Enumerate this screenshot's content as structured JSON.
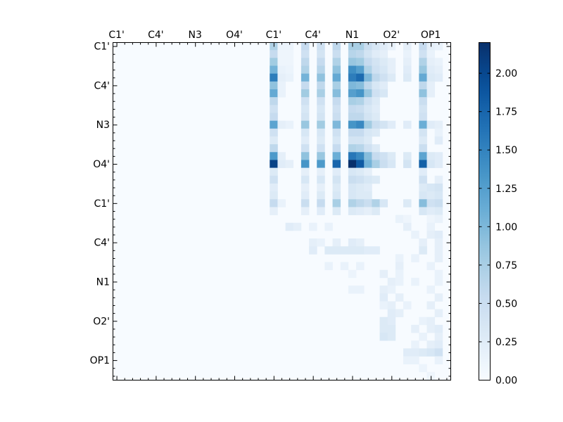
{
  "chart_data": {
    "type": "heatmap",
    "colormap": "Blues",
    "colors": {
      "low": "#f7fbff",
      "high": "#08306b"
    },
    "atom_labels": [
      "C1'",
      "C4'",
      "N3",
      "O4'",
      "C1'",
      "C4'",
      "N1",
      "O2'",
      "OP1"
    ],
    "top_tick_labels": [
      "C1'",
      "C4'",
      "N3",
      "O4'",
      "C1'",
      "C4'",
      "N1",
      "O2'",
      "OP1"
    ],
    "left_tick_labels": [
      "C1'",
      "C4'",
      "N3",
      "O4'",
      "C1'",
      "C4'",
      "N1",
      "O2'",
      "OP1"
    ],
    "grid_size": 43,
    "label_every": 5,
    "value_range": [
      0,
      2.2
    ],
    "colorbar_ticks": [
      "0.00",
      "0.25",
      "0.50",
      "0.75",
      "1.00",
      "1.25",
      "1.50",
      "1.75",
      "2.00"
    ],
    "colorbar_tick_values": [
      0,
      0.25,
      0.5,
      0.75,
      1.0,
      1.25,
      1.5,
      1.75,
      2.0
    ],
    "cells": [
      [
        0,
        20,
        0.7
      ],
      [
        0,
        21,
        0.12
      ],
      [
        0,
        22,
        0.12
      ],
      [
        0,
        24,
        0.55
      ],
      [
        0,
        26,
        0.45
      ],
      [
        0,
        28,
        0.6
      ],
      [
        0,
        30,
        0.75
      ],
      [
        0,
        31,
        0.75
      ],
      [
        0,
        32,
        0.5
      ],
      [
        0,
        33,
        0.35
      ],
      [
        0,
        34,
        0.25
      ],
      [
        0,
        35,
        0.15
      ],
      [
        0,
        37,
        0.2
      ],
      [
        0,
        39,
        0.55
      ],
      [
        0,
        40,
        0.2
      ],
      [
        0,
        41,
        0.15
      ],
      [
        1,
        20,
        0.55
      ],
      [
        1,
        21,
        0.1
      ],
      [
        1,
        22,
        0.1
      ],
      [
        1,
        24,
        0.45
      ],
      [
        1,
        26,
        0.4
      ],
      [
        1,
        28,
        0.5
      ],
      [
        1,
        30,
        0.65
      ],
      [
        1,
        31,
        0.6
      ],
      [
        1,
        32,
        0.4
      ],
      [
        1,
        33,
        0.25
      ],
      [
        1,
        34,
        0.2
      ],
      [
        1,
        37,
        0.15
      ],
      [
        1,
        39,
        0.45
      ],
      [
        1,
        40,
        0.15
      ],
      [
        2,
        20,
        0.8
      ],
      [
        2,
        21,
        0.1
      ],
      [
        2,
        22,
        0.1
      ],
      [
        2,
        24,
        0.6
      ],
      [
        2,
        26,
        0.55
      ],
      [
        2,
        28,
        0.7
      ],
      [
        2,
        30,
        0.85
      ],
      [
        2,
        31,
        0.8
      ],
      [
        2,
        32,
        0.55
      ],
      [
        2,
        33,
        0.4
      ],
      [
        2,
        34,
        0.3
      ],
      [
        2,
        35,
        0.2
      ],
      [
        2,
        37,
        0.2
      ],
      [
        2,
        39,
        0.7
      ],
      [
        2,
        40,
        0.2
      ],
      [
        2,
        41,
        0.15
      ],
      [
        3,
        20,
        1.05
      ],
      [
        3,
        21,
        0.15
      ],
      [
        3,
        22,
        0.12
      ],
      [
        3,
        24,
        0.7
      ],
      [
        3,
        26,
        0.65
      ],
      [
        3,
        28,
        0.9
      ],
      [
        3,
        30,
        1.4
      ],
      [
        3,
        31,
        1.25
      ],
      [
        3,
        32,
        0.7
      ],
      [
        3,
        33,
        0.45
      ],
      [
        3,
        34,
        0.35
      ],
      [
        3,
        35,
        0.2
      ],
      [
        3,
        37,
        0.25
      ],
      [
        3,
        39,
        0.85
      ],
      [
        3,
        40,
        0.25
      ],
      [
        3,
        41,
        0.2
      ],
      [
        4,
        20,
        1.55
      ],
      [
        4,
        21,
        0.2
      ],
      [
        4,
        22,
        0.15
      ],
      [
        4,
        24,
        1.05
      ],
      [
        4,
        26,
        0.9
      ],
      [
        4,
        28,
        1.15
      ],
      [
        4,
        30,
        1.55
      ],
      [
        4,
        31,
        1.7
      ],
      [
        4,
        32,
        1.0
      ],
      [
        4,
        33,
        0.6
      ],
      [
        4,
        34,
        0.45
      ],
      [
        4,
        35,
        0.3
      ],
      [
        4,
        37,
        0.3
      ],
      [
        4,
        39,
        1.15
      ],
      [
        4,
        40,
        0.3
      ],
      [
        4,
        41,
        0.25
      ],
      [
        5,
        20,
        0.9
      ],
      [
        5,
        21,
        0.15
      ],
      [
        5,
        24,
        0.55
      ],
      [
        5,
        26,
        0.6
      ],
      [
        5,
        28,
        0.75
      ],
      [
        5,
        30,
        1.0
      ],
      [
        5,
        31,
        0.95
      ],
      [
        5,
        32,
        0.6
      ],
      [
        5,
        33,
        0.35
      ],
      [
        5,
        34,
        0.25
      ],
      [
        5,
        39,
        0.6
      ],
      [
        5,
        40,
        0.2
      ],
      [
        6,
        20,
        1.15
      ],
      [
        6,
        21,
        0.15
      ],
      [
        6,
        24,
        0.8
      ],
      [
        6,
        26,
        0.75
      ],
      [
        6,
        28,
        0.95
      ],
      [
        6,
        30,
        1.25
      ],
      [
        6,
        31,
        1.35
      ],
      [
        6,
        32,
        0.85
      ],
      [
        6,
        33,
        0.45
      ],
      [
        6,
        34,
        0.35
      ],
      [
        6,
        39,
        0.9
      ],
      [
        6,
        40,
        0.2
      ],
      [
        7,
        20,
        0.6
      ],
      [
        7,
        24,
        0.45
      ],
      [
        7,
        26,
        0.45
      ],
      [
        7,
        28,
        0.55
      ],
      [
        7,
        30,
        0.75
      ],
      [
        7,
        31,
        0.7
      ],
      [
        7,
        32,
        0.45
      ],
      [
        7,
        33,
        0.3
      ],
      [
        7,
        39,
        0.5
      ],
      [
        8,
        20,
        0.45
      ],
      [
        8,
        24,
        0.35
      ],
      [
        8,
        26,
        0.35
      ],
      [
        8,
        28,
        0.45
      ],
      [
        8,
        30,
        0.55
      ],
      [
        8,
        31,
        0.5
      ],
      [
        8,
        32,
        0.35
      ],
      [
        8,
        33,
        0.25
      ],
      [
        8,
        39,
        0.4
      ],
      [
        9,
        20,
        0.55
      ],
      [
        9,
        24,
        0.4
      ],
      [
        9,
        26,
        0.4
      ],
      [
        9,
        28,
        0.5
      ],
      [
        9,
        30,
        0.6
      ],
      [
        9,
        31,
        0.6
      ],
      [
        9,
        32,
        0.4
      ],
      [
        9,
        33,
        0.3
      ],
      [
        9,
        39,
        0.45
      ],
      [
        10,
        20,
        1.2
      ],
      [
        10,
        21,
        0.2
      ],
      [
        10,
        22,
        0.15
      ],
      [
        10,
        24,
        0.85
      ],
      [
        10,
        26,
        0.8
      ],
      [
        10,
        28,
        1.0
      ],
      [
        10,
        30,
        1.35
      ],
      [
        10,
        31,
        1.45
      ],
      [
        10,
        32,
        0.8
      ],
      [
        10,
        33,
        0.5
      ],
      [
        10,
        34,
        0.4
      ],
      [
        10,
        35,
        0.25
      ],
      [
        10,
        37,
        0.25
      ],
      [
        10,
        39,
        1.1
      ],
      [
        10,
        40,
        0.25
      ],
      [
        10,
        41,
        0.2
      ],
      [
        11,
        20,
        0.45
      ],
      [
        11,
        24,
        0.35
      ],
      [
        11,
        26,
        0.35
      ],
      [
        11,
        28,
        0.45
      ],
      [
        11,
        30,
        0.55
      ],
      [
        11,
        31,
        0.55
      ],
      [
        11,
        32,
        0.35
      ],
      [
        11,
        33,
        0.3
      ],
      [
        11,
        39,
        0.4
      ],
      [
        11,
        41,
        0.15
      ],
      [
        12,
        20,
        0.3
      ],
      [
        12,
        24,
        0.25
      ],
      [
        12,
        26,
        0.3
      ],
      [
        12,
        28,
        0.35
      ],
      [
        12,
        30,
        0.4
      ],
      [
        12,
        31,
        0.4
      ],
      [
        12,
        32,
        0.3
      ],
      [
        12,
        39,
        0.3
      ],
      [
        12,
        41,
        0.25
      ],
      [
        13,
        20,
        0.6
      ],
      [
        13,
        24,
        0.45
      ],
      [
        13,
        26,
        0.45
      ],
      [
        13,
        28,
        0.55
      ],
      [
        13,
        30,
        0.7
      ],
      [
        13,
        31,
        0.65
      ],
      [
        13,
        32,
        0.45
      ],
      [
        13,
        33,
        0.3
      ],
      [
        13,
        39,
        0.5
      ],
      [
        14,
        20,
        1.3
      ],
      [
        14,
        21,
        0.2
      ],
      [
        14,
        24,
        0.9
      ],
      [
        14,
        26,
        0.85
      ],
      [
        14,
        28,
        1.1
      ],
      [
        14,
        30,
        1.6
      ],
      [
        14,
        31,
        1.45
      ],
      [
        14,
        32,
        0.95
      ],
      [
        14,
        33,
        0.55
      ],
      [
        14,
        34,
        0.45
      ],
      [
        14,
        35,
        0.3
      ],
      [
        14,
        37,
        0.3
      ],
      [
        14,
        39,
        1.2
      ],
      [
        14,
        40,
        0.3
      ],
      [
        14,
        41,
        0.25
      ],
      [
        15,
        20,
        2.05
      ],
      [
        15,
        21,
        0.25
      ],
      [
        15,
        22,
        0.2
      ],
      [
        15,
        24,
        1.35
      ],
      [
        15,
        26,
        1.3
      ],
      [
        15,
        28,
        1.75
      ],
      [
        15,
        30,
        2.2
      ],
      [
        15,
        31,
        1.85
      ],
      [
        15,
        32,
        1.05
      ],
      [
        15,
        33,
        0.75
      ],
      [
        15,
        34,
        0.5
      ],
      [
        15,
        35,
        0.35
      ],
      [
        15,
        37,
        0.4
      ],
      [
        15,
        39,
        1.8
      ],
      [
        15,
        40,
        0.35
      ],
      [
        15,
        41,
        0.25
      ],
      [
        16,
        20,
        0.3
      ],
      [
        16,
        24,
        0.2
      ],
      [
        16,
        26,
        0.2
      ],
      [
        16,
        28,
        0.25
      ],
      [
        16,
        30,
        0.35
      ],
      [
        16,
        31,
        0.3
      ],
      [
        16,
        32,
        0.2
      ],
      [
        16,
        39,
        0.25
      ],
      [
        17,
        20,
        0.45
      ],
      [
        17,
        24,
        0.35
      ],
      [
        17,
        26,
        0.35
      ],
      [
        17,
        28,
        0.4
      ],
      [
        17,
        30,
        0.5
      ],
      [
        17,
        31,
        0.45
      ],
      [
        17,
        32,
        0.35
      ],
      [
        17,
        33,
        0.3
      ],
      [
        17,
        39,
        0.45
      ],
      [
        17,
        41,
        0.2
      ],
      [
        18,
        20,
        0.25
      ],
      [
        18,
        24,
        0.2
      ],
      [
        18,
        26,
        0.2
      ],
      [
        18,
        28,
        0.3
      ],
      [
        18,
        30,
        0.35
      ],
      [
        18,
        31,
        0.3
      ],
      [
        18,
        32,
        0.25
      ],
      [
        18,
        39,
        0.3
      ],
      [
        18,
        40,
        0.35
      ],
      [
        18,
        41,
        0.4
      ],
      [
        19,
        20,
        0.3
      ],
      [
        19,
        24,
        0.25
      ],
      [
        19,
        26,
        0.3
      ],
      [
        19,
        28,
        0.35
      ],
      [
        19,
        30,
        0.35
      ],
      [
        19,
        31,
        0.3
      ],
      [
        19,
        32,
        0.3
      ],
      [
        19,
        39,
        0.35
      ],
      [
        19,
        40,
        0.3
      ],
      [
        19,
        41,
        0.35
      ],
      [
        20,
        20,
        0.55
      ],
      [
        20,
        21,
        0.15
      ],
      [
        20,
        24,
        0.5
      ],
      [
        20,
        26,
        0.55
      ],
      [
        20,
        28,
        0.75
      ],
      [
        20,
        30,
        0.7
      ],
      [
        20,
        31,
        0.6
      ],
      [
        20,
        32,
        0.5
      ],
      [
        20,
        33,
        0.7
      ],
      [
        20,
        34,
        0.35
      ],
      [
        20,
        37,
        0.3
      ],
      [
        20,
        39,
        0.95
      ],
      [
        20,
        40,
        0.45
      ],
      [
        20,
        41,
        0.5
      ],
      [
        21,
        20,
        0.2
      ],
      [
        21,
        24,
        0.2
      ],
      [
        21,
        26,
        0.25
      ],
      [
        21,
        28,
        0.3
      ],
      [
        21,
        30,
        0.3
      ],
      [
        21,
        31,
        0.25
      ],
      [
        21,
        32,
        0.2
      ],
      [
        21,
        33,
        0.3
      ],
      [
        21,
        39,
        0.35
      ],
      [
        21,
        40,
        0.25
      ],
      [
        21,
        41,
        0.3
      ],
      [
        22,
        36,
        0.15
      ],
      [
        22,
        37,
        0.1
      ],
      [
        22,
        40,
        0.1
      ],
      [
        22,
        41,
        0.15
      ],
      [
        23,
        22,
        0.25
      ],
      [
        23,
        23,
        0.2
      ],
      [
        23,
        25,
        0.15
      ],
      [
        23,
        27,
        0.15
      ],
      [
        23,
        37,
        0.2
      ],
      [
        23,
        40,
        0.15
      ],
      [
        24,
        38,
        0.15
      ],
      [
        24,
        40,
        0.2
      ],
      [
        24,
        41,
        0.25
      ],
      [
        25,
        25,
        0.2
      ],
      [
        25,
        26,
        0.15
      ],
      [
        25,
        28,
        0.2
      ],
      [
        25,
        30,
        0.25
      ],
      [
        25,
        31,
        0.2
      ],
      [
        25,
        39,
        0.2
      ],
      [
        25,
        41,
        0.2
      ],
      [
        26,
        25,
        0.25
      ],
      [
        26,
        27,
        0.3
      ],
      [
        26,
        28,
        0.3
      ],
      [
        26,
        29,
        0.3
      ],
      [
        26,
        30,
        0.3
      ],
      [
        26,
        31,
        0.3
      ],
      [
        26,
        32,
        0.25
      ],
      [
        26,
        33,
        0.25
      ],
      [
        26,
        39,
        0.3
      ],
      [
        26,
        41,
        0.2
      ],
      [
        27,
        36,
        0.15
      ],
      [
        27,
        38,
        0.15
      ],
      [
        27,
        41,
        0.2
      ],
      [
        28,
        27,
        0.15
      ],
      [
        28,
        29,
        0.15
      ],
      [
        28,
        31,
        0.15
      ],
      [
        28,
        36,
        0.2
      ],
      [
        28,
        40,
        0.15
      ],
      [
        29,
        30,
        0.12
      ],
      [
        29,
        34,
        0.2
      ],
      [
        29,
        36,
        0.15
      ],
      [
        29,
        41,
        0.15
      ],
      [
        30,
        35,
        0.2
      ],
      [
        30,
        36,
        0.15
      ],
      [
        30,
        38,
        0.15
      ],
      [
        30,
        41,
        0.15
      ],
      [
        31,
        30,
        0.15
      ],
      [
        31,
        31,
        0.15
      ],
      [
        31,
        34,
        0.2
      ],
      [
        31,
        35,
        0.15
      ],
      [
        31,
        40,
        0.15
      ],
      [
        32,
        34,
        0.25
      ],
      [
        32,
        36,
        0.2
      ],
      [
        32,
        41,
        0.2
      ],
      [
        33,
        34,
        0.15
      ],
      [
        33,
        35,
        0.2
      ],
      [
        33,
        37,
        0.15
      ],
      [
        33,
        40,
        0.2
      ],
      [
        34,
        35,
        0.25
      ],
      [
        34,
        36,
        0.2
      ],
      [
        34,
        41,
        0.2
      ],
      [
        35,
        34,
        0.3
      ],
      [
        35,
        35,
        0.25
      ],
      [
        35,
        39,
        0.15
      ],
      [
        35,
        40,
        0.2
      ],
      [
        36,
        34,
        0.3
      ],
      [
        36,
        35,
        0.3
      ],
      [
        36,
        38,
        0.2
      ],
      [
        36,
        40,
        0.2
      ],
      [
        36,
        41,
        0.25
      ],
      [
        37,
        34,
        0.35
      ],
      [
        37,
        35,
        0.3
      ],
      [
        37,
        39,
        0.15
      ],
      [
        37,
        41,
        0.2
      ],
      [
        38,
        38,
        0.15
      ],
      [
        38,
        40,
        0.2
      ],
      [
        38,
        41,
        0.25
      ],
      [
        39,
        37,
        0.25
      ],
      [
        39,
        38,
        0.25
      ],
      [
        39,
        39,
        0.3
      ],
      [
        39,
        40,
        0.35
      ],
      [
        39,
        41,
        0.45
      ],
      [
        40,
        37,
        0.15
      ],
      [
        40,
        38,
        0.15
      ],
      [
        40,
        41,
        0.15
      ],
      [
        41,
        39,
        0.12
      ],
      [
        42,
        40,
        0.1
      ]
    ]
  }
}
